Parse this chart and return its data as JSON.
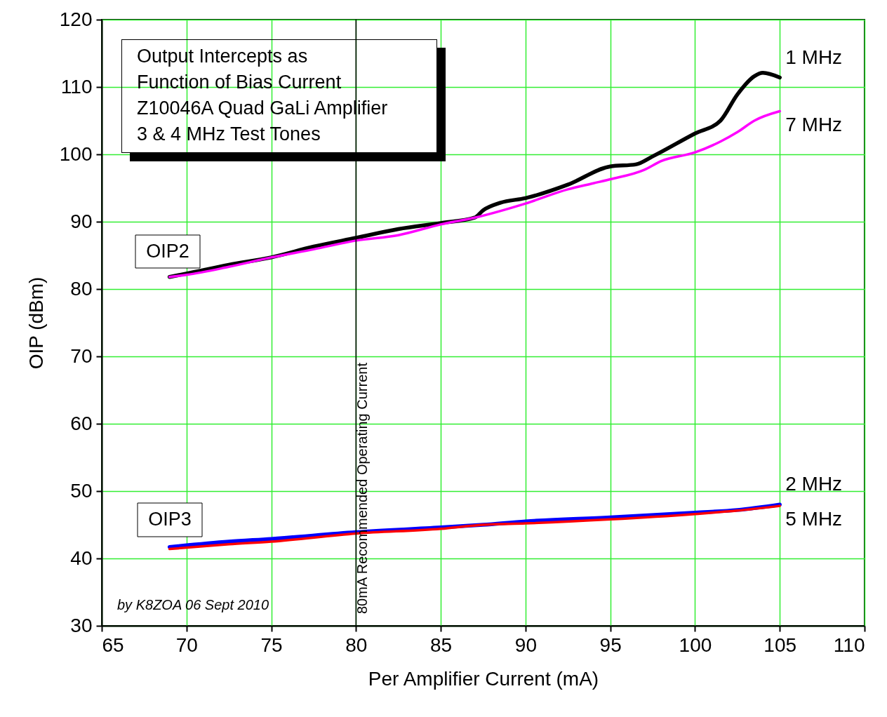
{
  "chart_data": {
    "type": "line",
    "title": "Output Intercepts as\nFunction of Bias Current\nZ10046A Quad GaLi Amplifier\n3 & 4 MHz Test Tones",
    "xlabel": "Per Amplifier Current (mA)",
    "ylabel": "OIP (dBm)",
    "xlim": [
      65,
      110
    ],
    "xticks": [
      65,
      70,
      75,
      80,
      85,
      90,
      95,
      100,
      105,
      110
    ],
    "ylim": [
      30,
      120
    ],
    "yticks": [
      30,
      40,
      50,
      60,
      70,
      80,
      90,
      100,
      110,
      120
    ],
    "grid": true,
    "legend": false,
    "line_style": "solid",
    "series": [
      {
        "name": "1 MHz",
        "color": "#000000",
        "x": [
          69,
          70,
          72.5,
          75,
          77.5,
          80,
          82.5,
          85,
          87,
          87.5,
          88.5,
          90,
          92.5,
          95,
          96.5,
          97.5,
          100,
          101.5,
          102.5,
          103.5,
          104,
          105
        ],
        "values": [
          81.8,
          82.3,
          83.6,
          84.7,
          86.3,
          87.6,
          88.9,
          89.8,
          90.6,
          91.7,
          92.8,
          93.5,
          95.5,
          98.2,
          98.5,
          99.7,
          103.1,
          105,
          108.9,
          111.6,
          112.1,
          111.4
        ]
      },
      {
        "name": "7 MHz",
        "color": "#ff00ff",
        "x": [
          69,
          70,
          72.5,
          75,
          77.5,
          80,
          82.5,
          85,
          87,
          90,
          92.5,
          94,
          95,
          97,
          98,
          100,
          101.5,
          102.5,
          103.5,
          105
        ],
        "values": [
          81.8,
          82.1,
          83.3,
          84.7,
          85.9,
          87.2,
          88,
          89.6,
          90.6,
          92.7,
          94.8,
          95.7,
          96.3,
          97.7,
          99,
          100.3,
          101.9,
          103.3,
          105,
          106.4
        ]
      },
      {
        "name": "2 MHz",
        "color": "#0000ff",
        "x": [
          69,
          72.5,
          75,
          80,
          85,
          87.5,
          90,
          95,
          100,
          102.5,
          105
        ],
        "values": [
          41.7,
          42.5,
          42.9,
          43.9,
          44.6,
          45,
          45.5,
          46.1,
          46.8,
          47.2,
          48
        ]
      },
      {
        "name": "5 MHz",
        "color": "#ff0000",
        "x": [
          69,
          72.5,
          75,
          80,
          85,
          87.5,
          90,
          95,
          100,
          102.5,
          105
        ],
        "values": [
          41.4,
          42.1,
          42.5,
          43.7,
          44.4,
          45,
          45.2,
          45.8,
          46.6,
          47.1,
          47.8
        ]
      }
    ],
    "ref_lines": [
      {
        "axis": "x",
        "value": 80,
        "label": "80mA Recommended Operating Current",
        "color": "#000000"
      }
    ],
    "annotations": [
      "OIP2",
      "OIP3",
      "by K8ZOA 06 Sept 2010"
    ]
  }
}
